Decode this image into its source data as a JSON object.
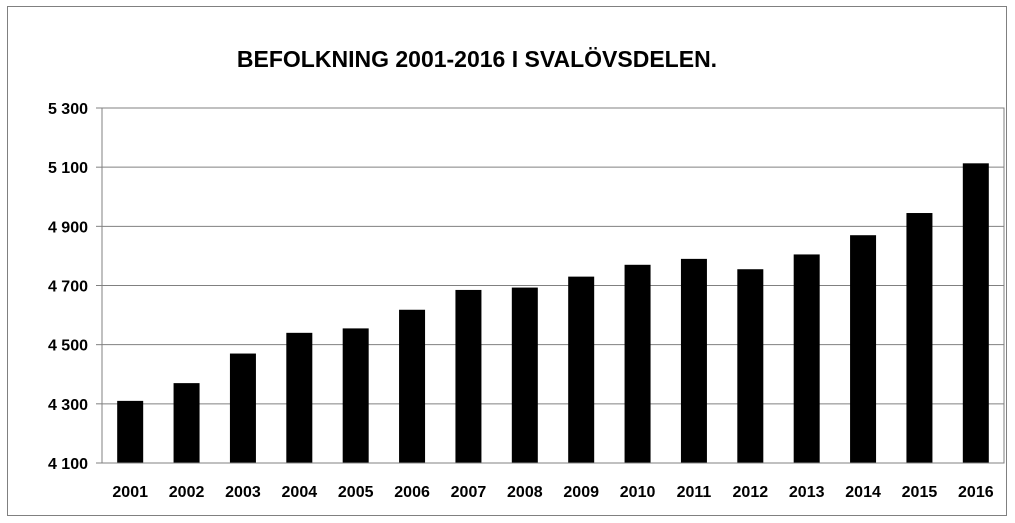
{
  "chart_data": {
    "type": "bar",
    "title": "BEFOLKNING 2001-2016 I SVALÖVSDELEN.",
    "categories": [
      "2001",
      "2002",
      "2003",
      "2004",
      "2005",
      "2006",
      "2007",
      "2008",
      "2009",
      "2010",
      "2011",
      "2012",
      "2013",
      "2014",
      "2015",
      "2016"
    ],
    "values": [
      4310,
      4370,
      4470,
      4540,
      4555,
      4618,
      4685,
      4693,
      4730,
      4770,
      4790,
      4755,
      4805,
      4870,
      4945,
      5113
    ],
    "ylim": [
      4100,
      5300
    ],
    "yticks": [
      4100,
      4300,
      4500,
      4700,
      4900,
      5100,
      5300
    ],
    "ytick_labels": [
      "4 100",
      "4 300",
      "4 500",
      "4 700",
      "4 900",
      "5 100",
      "5 300"
    ],
    "grid": true,
    "bar_color": "#000000"
  }
}
